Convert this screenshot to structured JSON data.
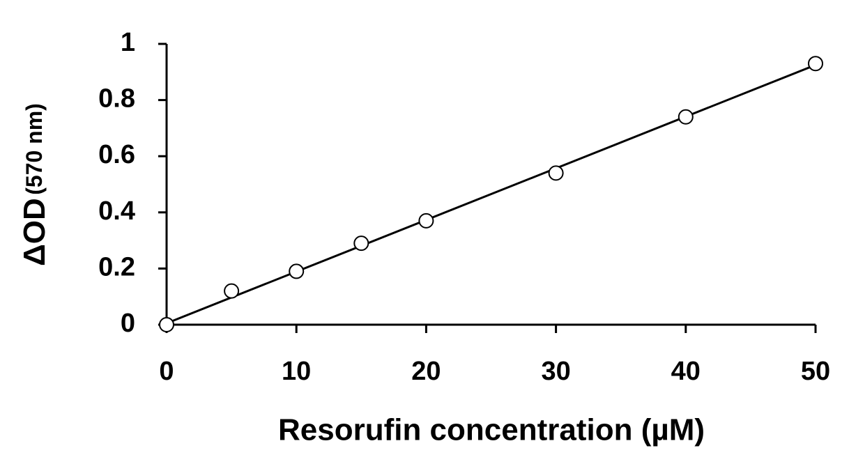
{
  "chart_data": {
    "type": "scatter",
    "xlabel": "Resorufin concentration (µM)",
    "ylabel": "ΔOD",
    "ylabel_unit": "(570 nm)",
    "x": [
      0,
      5,
      10,
      15,
      20,
      30,
      40,
      50
    ],
    "values": [
      0,
      0.12,
      0.19,
      0.29,
      0.37,
      0.54,
      0.74,
      0.93
    ],
    "color": "#000000",
    "trendline": {
      "x": [
        0,
        50
      ],
      "y": [
        0.005,
        0.925
      ]
    },
    "xlim": [
      0,
      50
    ],
    "xticks": [
      0,
      10,
      20,
      30,
      40,
      50
    ],
    "ylim": [
      0,
      1
    ],
    "yticks": [
      0,
      0.2,
      0.4,
      0.6,
      0.8,
      1
    ],
    "grid": false
  }
}
